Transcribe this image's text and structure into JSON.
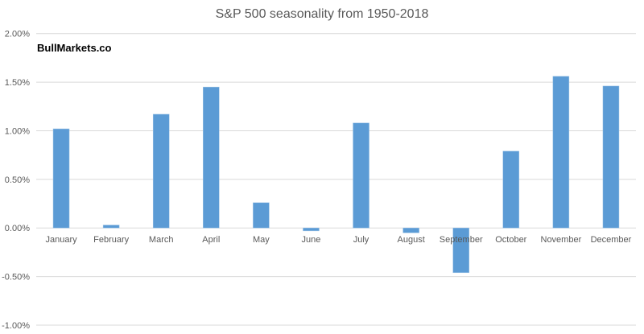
{
  "chart_data": {
    "type": "bar",
    "title": "S&P 500 seasonality from 1950-2018",
    "watermark": "BullMarkets.co",
    "xlabel": "",
    "ylabel": "",
    "categories": [
      "January",
      "February",
      "March",
      "April",
      "May",
      "June",
      "July",
      "August",
      "September",
      "October",
      "November",
      "December"
    ],
    "values": [
      1.02,
      0.03,
      1.17,
      1.45,
      0.26,
      -0.03,
      1.08,
      -0.05,
      -0.46,
      0.79,
      1.56,
      1.46
    ],
    "value_unit": "percent",
    "ylim": [
      -1.0,
      2.0
    ],
    "yticks": [
      2.0,
      1.5,
      1.0,
      0.5,
      0.0,
      -0.5,
      -1.0
    ],
    "ytick_labels": [
      "2.00%",
      "1.50%",
      "1.00%",
      "0.50%",
      "0.00%",
      "-0.50%",
      "-1.00%"
    ],
    "grid": true,
    "legend": "none",
    "bar_color": "#5B9BD5"
  }
}
